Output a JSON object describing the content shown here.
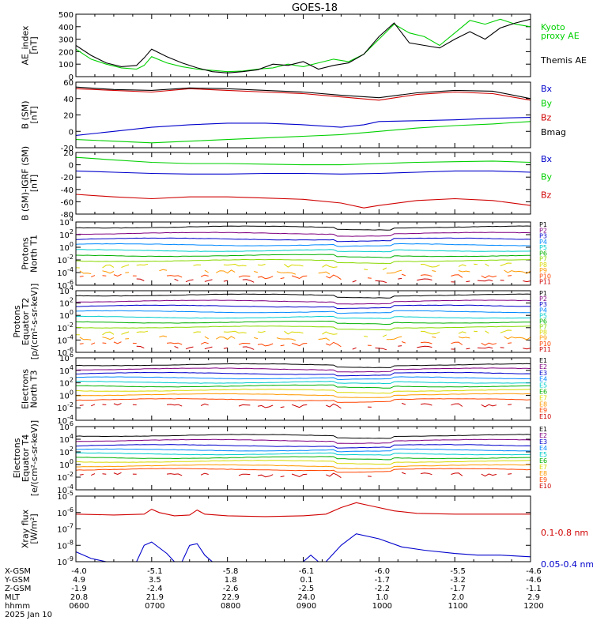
{
  "title": "GOES-18",
  "colors": {
    "black": "#000000",
    "green": "#00d000",
    "blue": "#0000cc",
    "red": "#d00000",
    "P1": "#000000",
    "P2": "#800080",
    "P3": "#0000cc",
    "P4": "#0088ff",
    "P5": "#00cccc",
    "P6": "#00b000",
    "P7": "#88d800",
    "P8": "#d8d800",
    "P9": "#ff9900",
    "P10": "#ff4400",
    "P11": "#cc0000"
  },
  "chart_data": [
    {
      "type": "line",
      "id": "ae",
      "ylabel": "AE_index\n[nT]",
      "ylim": [
        0,
        500
      ],
      "ticks": [
        "0",
        "100",
        "200",
        "300",
        "400",
        "500"
      ],
      "series": [
        {
          "name": "Kyoto\nproxy AE",
          "color": "green",
          "x": [
            6.0,
            6.2,
            6.4,
            6.6,
            6.8,
            6.9,
            7.0,
            7.2,
            7.4,
            7.6,
            7.8,
            8.0,
            8.2,
            8.4,
            8.6,
            8.8,
            9.0,
            9.2,
            9.4,
            9.6,
            9.8,
            10.0,
            10.2,
            10.4,
            10.6,
            10.8,
            11.0,
            11.2,
            11.4,
            11.6,
            11.8,
            12.0
          ],
          "values": [
            220,
            140,
            100,
            70,
            60,
            90,
            160,
            110,
            80,
            60,
            50,
            40,
            45,
            60,
            70,
            100,
            80,
            110,
            140,
            120,
            180,
            300,
            420,
            350,
            320,
            250,
            350,
            450,
            420,
            460,
            420,
            400
          ]
        },
        {
          "name": "Themis AE",
          "color": "black",
          "x": [
            6.0,
            6.2,
            6.4,
            6.6,
            6.8,
            6.9,
            7.0,
            7.2,
            7.4,
            7.6,
            7.8,
            8.0,
            8.2,
            8.4,
            8.6,
            8.8,
            9.0,
            9.2,
            9.4,
            9.6,
            9.8,
            10.0,
            10.2,
            10.4,
            10.6,
            10.8,
            11.0,
            11.2,
            11.4,
            11.6,
            11.8,
            12.0
          ],
          "values": [
            250,
            170,
            110,
            80,
            90,
            150,
            220,
            160,
            110,
            70,
            40,
            30,
            40,
            55,
            100,
            90,
            120,
            60,
            90,
            110,
            180,
            320,
            430,
            270,
            250,
            230,
            300,
            360,
            300,
            390,
            430,
            460
          ]
        }
      ]
    },
    {
      "type": "line",
      "id": "bsm",
      "ylabel": "B (SM)\n[nT]",
      "ylim": [
        -20,
        60
      ],
      "ticks": [
        "-20",
        "0",
        "20",
        "40",
        "60"
      ],
      "series": [
        {
          "name": "Bx",
          "color": "blue",
          "x": [
            6.0,
            6.5,
            7.0,
            7.5,
            8.0,
            8.5,
            9.0,
            9.5,
            9.8,
            10.0,
            10.5,
            11.0,
            11.5,
            12.0
          ],
          "values": [
            -5,
            0,
            5,
            8,
            10,
            10,
            8,
            5,
            8,
            12,
            13,
            14,
            16,
            17
          ]
        },
        {
          "name": "By",
          "color": "green",
          "x": [
            6.0,
            6.5,
            7.0,
            7.5,
            8.0,
            8.5,
            9.0,
            9.5,
            10.0,
            10.5,
            11.0,
            11.5,
            12.0
          ],
          "values": [
            -10,
            -12,
            -14,
            -12,
            -10,
            -8,
            -6,
            -4,
            0,
            4,
            7,
            9,
            12
          ]
        },
        {
          "name": "Bz",
          "color": "red",
          "x": [
            6.0,
            6.5,
            7.0,
            7.5,
            8.0,
            8.5,
            9.0,
            9.5,
            10.0,
            10.5,
            11.0,
            11.5,
            12.0
          ],
          "values": [
            52,
            50,
            48,
            52,
            50,
            48,
            46,
            42,
            38,
            45,
            48,
            46,
            38
          ]
        },
        {
          "name": "Bmag",
          "color": "black",
          "x": [
            6.0,
            6.5,
            7.0,
            7.5,
            8.0,
            8.5,
            9.0,
            9.5,
            10.0,
            10.5,
            11.0,
            11.5,
            12.0
          ],
          "values": [
            54,
            51,
            50,
            53,
            52,
            50,
            48,
            44,
            41,
            47,
            50,
            49,
            40
          ]
        }
      ]
    },
    {
      "type": "line",
      "id": "bigrf",
      "ylabel": "B (SM)-IGRF (SM)\n[nT]",
      "ylim": [
        -80,
        20
      ],
      "ticks": [
        "-80",
        "-60",
        "-40",
        "-20",
        "0",
        "20"
      ],
      "series": [
        {
          "name": "Bx",
          "color": "blue",
          "x": [
            6.0,
            6.5,
            7.0,
            7.5,
            8.0,
            8.5,
            9.0,
            9.5,
            10.0,
            10.5,
            11.0,
            11.5,
            12.0
          ],
          "values": [
            -10,
            -12,
            -14,
            -15,
            -15,
            -14,
            -14,
            -15,
            -14,
            -12,
            -10,
            -10,
            -12
          ]
        },
        {
          "name": "By",
          "color": "green",
          "x": [
            6.0,
            6.5,
            7.0,
            7.5,
            8.0,
            8.5,
            9.0,
            9.5,
            10.0,
            10.5,
            11.0,
            11.5,
            12.0
          ],
          "values": [
            12,
            8,
            4,
            2,
            2,
            1,
            0,
            0,
            2,
            4,
            5,
            6,
            4
          ]
        },
        {
          "name": "Bz",
          "color": "red",
          "x": [
            6.0,
            6.5,
            7.0,
            7.5,
            8.0,
            8.5,
            9.0,
            9.5,
            9.8,
            10.0,
            10.5,
            11.0,
            11.5,
            12.0
          ],
          "values": [
            -48,
            -52,
            -55,
            -52,
            -52,
            -54,
            -56,
            -62,
            -70,
            -66,
            -58,
            -55,
            -58,
            -66
          ]
        }
      ]
    },
    {
      "type": "line",
      "id": "pn",
      "ylabel": "Protons\nNorth T1",
      "log": true,
      "ylim": [
        -6,
        4
      ],
      "ticks": [
        "10^-6",
        "10^-4",
        "10^-2",
        "10^0",
        "10^2",
        "10^4"
      ],
      "channels": [
        "P1",
        "P2",
        "P3",
        "P4",
        "P5",
        "P6",
        "P7",
        "P8",
        "P9",
        "P10",
        "P11"
      ],
      "levels": [
        3.2,
        2.2,
        1.3,
        0.4,
        -0.5,
        -1.3,
        -2.1,
        -2.9,
        -3.9,
        -4.6,
        -5.2
      ],
      "gaps_from": 7
    },
    {
      "type": "line",
      "id": "pe",
      "ylabel": "Protons\nEquator T2\n[p/(cm²-s-sr-keV)]",
      "log": true,
      "ylim": [
        -6,
        4
      ],
      "ticks": [
        "10^-6",
        "10^-4",
        "10^-2",
        "10^0",
        "10^2",
        "10^4"
      ],
      "channels": [
        "P1",
        "P2",
        "P3",
        "P4",
        "P5",
        "P6",
        "P7",
        "P8",
        "P9",
        "P10",
        "P11"
      ],
      "levels": [
        3.3,
        2.3,
        1.5,
        0.6,
        -0.3,
        -1.1,
        -1.9,
        -2.8,
        -3.7,
        -4.6,
        -5.2
      ],
      "gaps_from": 7
    },
    {
      "type": "line",
      "id": "en",
      "ylabel": "Electrons\nNorth T3",
      "log": true,
      "ylim": [
        -4,
        6
      ],
      "ticks": [
        "10^-4",
        "10^-2",
        "10^0",
        "10^2",
        "10^4",
        "10^6"
      ],
      "channels": [
        "E1",
        "E2",
        "E3",
        "E4",
        "E5",
        "E6",
        "E7",
        "E8",
        "E9",
        "E10"
      ],
      "levels": [
        4.9,
        4.2,
        3.5,
        2.8,
        2.1,
        1.5,
        0.8,
        0.1,
        -0.7,
        -1.6
      ],
      "gaps_from": 9
    },
    {
      "type": "line",
      "id": "ee",
      "ylabel": "Electrons\nEquator T4\n[e/(cm²-s-sr-keV)]",
      "log": true,
      "ylim": [
        -4,
        6
      ],
      "ticks": [
        "10^-4",
        "10^-2",
        "10^0",
        "10^2",
        "10^4",
        "10^6"
      ],
      "channels": [
        "E1",
        "E2",
        "E3",
        "E4",
        "E5",
        "E6",
        "E7",
        "E8",
        "E9",
        "E10"
      ],
      "levels": [
        4.6,
        3.8,
        3.0,
        2.3,
        1.7,
        1.1,
        0.5,
        -0.2,
        -0.8,
        -1.6
      ],
      "gaps_from": 9
    },
    {
      "type": "line",
      "id": "xray",
      "ylabel": "Xray flux\n[W/m²]",
      "log": true,
      "ylim": [
        -9,
        -5
      ],
      "ticks": [
        "10^-9",
        "10^-8",
        "10^-7",
        "10^-6",
        "10^-5"
      ],
      "series": [
        {
          "name": "0.1-0.8 nm",
          "color": "red",
          "x": [
            6.0,
            6.5,
            6.9,
            7.0,
            7.1,
            7.3,
            7.5,
            7.6,
            7.7,
            8.0,
            8.5,
            9.0,
            9.3,
            9.5,
            9.7,
            9.9,
            10.2,
            10.5,
            11.0,
            11.5,
            12.0
          ],
          "values": [
            -6.1,
            -6.15,
            -6.1,
            -5.8,
            -6.0,
            -6.2,
            -6.15,
            -5.85,
            -6.1,
            -6.2,
            -6.25,
            -6.2,
            -6.1,
            -5.7,
            -5.4,
            -5.6,
            -5.9,
            -6.05,
            -6.1,
            -6.1,
            -6.1
          ]
        },
        {
          "name": "0.05-0.4 nm",
          "color": "blue",
          "x": [
            6.0,
            6.2,
            6.4,
            6.6,
            6.8,
            6.9,
            7.0,
            7.2,
            7.3,
            7.4,
            7.5,
            7.6,
            7.7,
            7.8,
            8.0,
            8.5,
            9.0,
            9.1,
            9.2,
            9.3,
            9.5,
            9.7,
            10.0,
            10.3,
            10.6,
            11.0,
            11.3,
            11.6,
            12.0
          ],
          "values": [
            -8.4,
            -8.8,
            -9.0,
            -9.0,
            -9.0,
            -8.0,
            -7.8,
            -8.5,
            -9.0,
            -9.0,
            -8.0,
            -7.9,
            -8.6,
            -9.0,
            -9.0,
            -9.0,
            -9.0,
            -8.6,
            -9.0,
            -9.0,
            -8.0,
            -7.3,
            -7.6,
            -8.1,
            -8.3,
            -8.5,
            -8.6,
            -8.6,
            -8.7
          ]
        }
      ]
    }
  ],
  "coords": {
    "rows": [
      {
        "label": "X-GSM",
        "values": [
          "-4.0",
          "-5.1",
          "-5.8",
          "-6.1",
          "-6.0",
          "-5.5",
          "-4.6"
        ]
      },
      {
        "label": "Y-GSM",
        "values": [
          "4.9",
          "3.5",
          "1.8",
          "0.1",
          "-1.7",
          "-3.2",
          "-4.6"
        ]
      },
      {
        "label": "Z-GSM",
        "values": [
          "-1.9",
          "-2.4",
          "-2.6",
          "-2.5",
          "-2.2",
          "-1.7",
          "-1.1"
        ]
      },
      {
        "label": "MLT",
        "values": [
          "20.8",
          "21.9",
          "22.9",
          "24.0",
          "1.0",
          "2.0",
          "2.9"
        ]
      },
      {
        "label": "hhmm",
        "values": [
          "0600",
          "0700",
          "0800",
          "0900",
          "1000",
          "1100",
          "1200"
        ]
      }
    ],
    "date": "2025 Jan 10"
  }
}
